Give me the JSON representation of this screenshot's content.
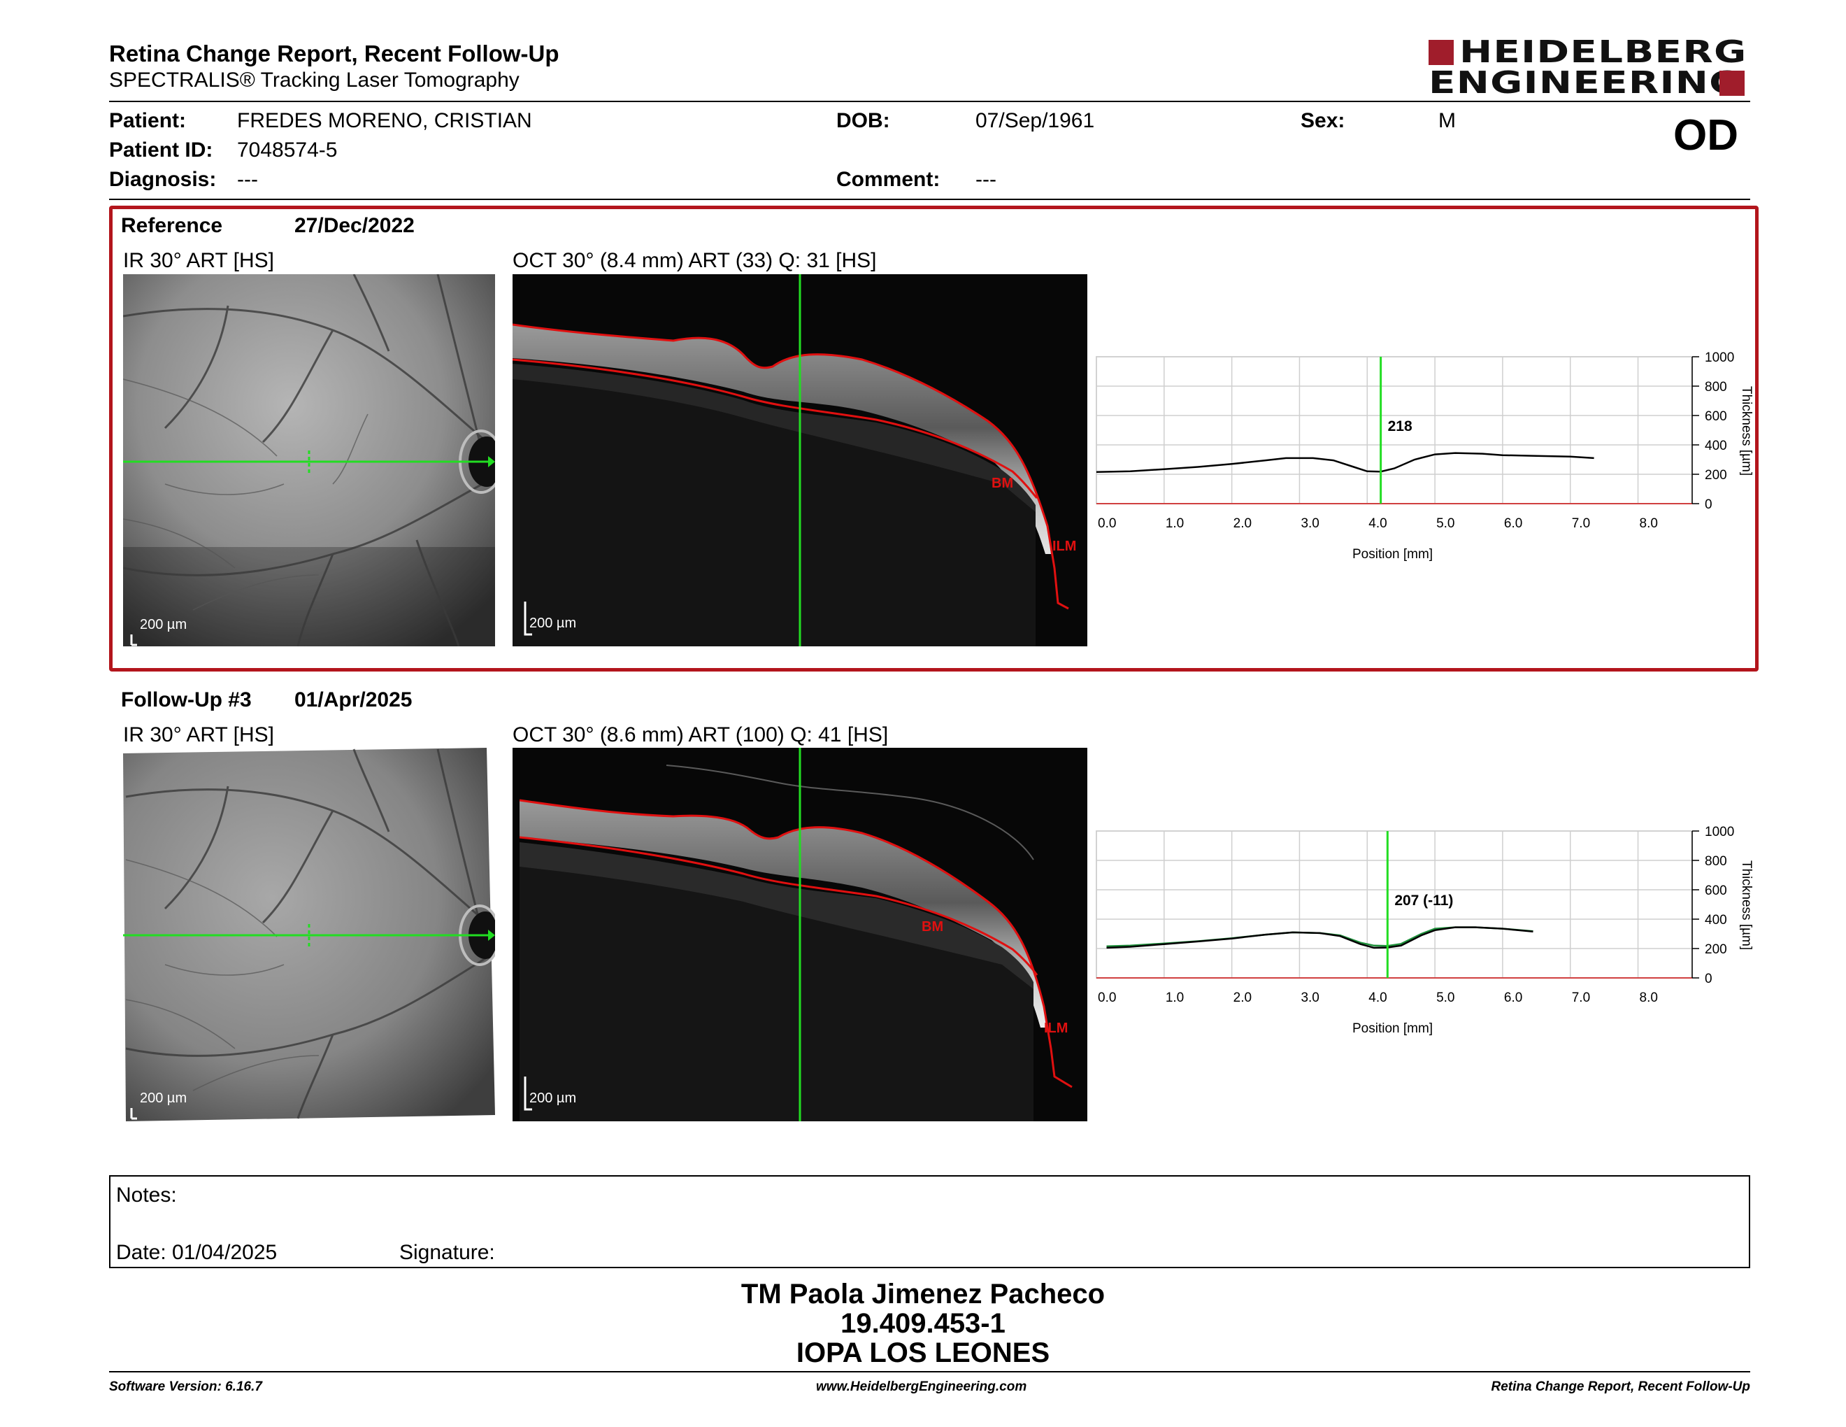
{
  "header": {
    "title": "Retina Change Report, Recent Follow-Up",
    "subtitle": "SPECTRALIS® Tracking Laser Tomography",
    "logo_line1": "HEIDELBERG",
    "logo_line2": "ENGINEERING",
    "eye": "OD"
  },
  "patient": {
    "patient_label": "Patient:",
    "patient_value": "FREDES MORENO, CRISTIAN",
    "id_label": "Patient ID:",
    "id_value": "7048574-5",
    "diagnosis_label": "Diagnosis:",
    "diagnosis_value": "---",
    "dob_label": "DOB:",
    "dob_value": "07/Sep/1961",
    "comment_label": "Comment:",
    "comment_value": "---",
    "sex_label": "Sex:",
    "sex_value": "M"
  },
  "reference": {
    "label": "Reference",
    "date": "27/Dec/2022",
    "ir_title": "IR 30° ART [HS]",
    "oct_title": "OCT 30° (8.4 mm) ART (33) Q: 31 [HS]",
    "scale": "200 µm",
    "bm": "BM",
    "ilm": "ILM"
  },
  "followup": {
    "label": "Follow-Up #3",
    "date": "01/Apr/2025",
    "ir_title": "IR 30° ART [HS]",
    "oct_title": "OCT 30° (8.6 mm) ART (100) Q: 41 [HS]",
    "scale": "200 µm",
    "bm": "BM",
    "ilm": "ILM"
  },
  "chart_data": [
    {
      "type": "line",
      "xlabel": "Position [mm]",
      "ylabel": "Thickness [µm]",
      "xlim": [
        0,
        8.8
      ],
      "ylim": [
        0,
        1000
      ],
      "x_ticks": [
        "0.0",
        "1.0",
        "2.0",
        "3.0",
        "4.0",
        "5.0",
        "6.0",
        "7.0",
        "8.0"
      ],
      "y_ticks": [
        "0",
        "200",
        "400",
        "600",
        "800",
        "1000"
      ],
      "grid": true,
      "marker_x": 4.2,
      "marker_label": "218",
      "series": [
        {
          "x": [
            0.0,
            0.5,
            1.0,
            1.5,
            2.0,
            2.5,
            2.8,
            3.2,
            3.5,
            3.8,
            4.0,
            4.2,
            4.4,
            4.7,
            5.0,
            5.3,
            5.7,
            6.0,
            6.5,
            7.0,
            7.35
          ],
          "y": [
            215,
            220,
            235,
            250,
            270,
            295,
            310,
            310,
            295,
            250,
            220,
            218,
            240,
            300,
            335,
            345,
            340,
            330,
            325,
            320,
            310
          ]
        }
      ]
    },
    {
      "type": "line",
      "xlabel": "Position [mm]",
      "ylabel": "Thickness [µm]",
      "xlim": [
        0,
        8.8
      ],
      "ylim": [
        0,
        1000
      ],
      "x_ticks": [
        "0.0",
        "1.0",
        "2.0",
        "3.0",
        "4.0",
        "5.0",
        "6.0",
        "7.0",
        "8.0"
      ],
      "y_ticks": [
        "0",
        "200",
        "400",
        "600",
        "800",
        "1000"
      ],
      "grid": true,
      "marker_x": 4.3,
      "marker_label": "207 (-11)",
      "series": [
        {
          "x": [
            0.15,
            0.5,
            1.0,
            1.5,
            2.0,
            2.5,
            2.9,
            3.3,
            3.6,
            3.9,
            4.1,
            4.3,
            4.5,
            4.8,
            5.0,
            5.3,
            5.6,
            6.0,
            6.45
          ],
          "y": [
            205,
            212,
            230,
            248,
            268,
            295,
            310,
            305,
            285,
            230,
            205,
            207,
            220,
            290,
            325,
            345,
            345,
            335,
            315
          ]
        },
        {
          "x": [
            0.15,
            0.5,
            1.0,
            1.5,
            2.0,
            2.5,
            2.9,
            3.3,
            3.6,
            3.9,
            4.1,
            4.3,
            4.5,
            4.8,
            5.0,
            5.3,
            5.6,
            6.0,
            6.45
          ],
          "y": [
            215,
            220,
            235,
            250,
            270,
            295,
            310,
            305,
            290,
            240,
            220,
            218,
            232,
            300,
            335,
            345,
            345,
            335,
            318
          ]
        }
      ]
    }
  ],
  "notes": {
    "notes_label": "Notes:",
    "date_label": "Date: 01/04/2025",
    "signature_label": "Signature:"
  },
  "technician": {
    "name": "TM Paola Jimenez Pacheco",
    "id": "19.409.453-1",
    "site": "IOPA LOS LEONES"
  },
  "footer": {
    "software": "Software Version: 6.16.7",
    "url": "www.HeidelbergEngineering.com",
    "report": "Retina Change Report, Recent Follow-Up"
  },
  "colors": {
    "accent_red": "#b3151c",
    "logo_red": "#a01d2b",
    "scan_green": "#22dd22",
    "segmentation_red": "#e01010"
  }
}
